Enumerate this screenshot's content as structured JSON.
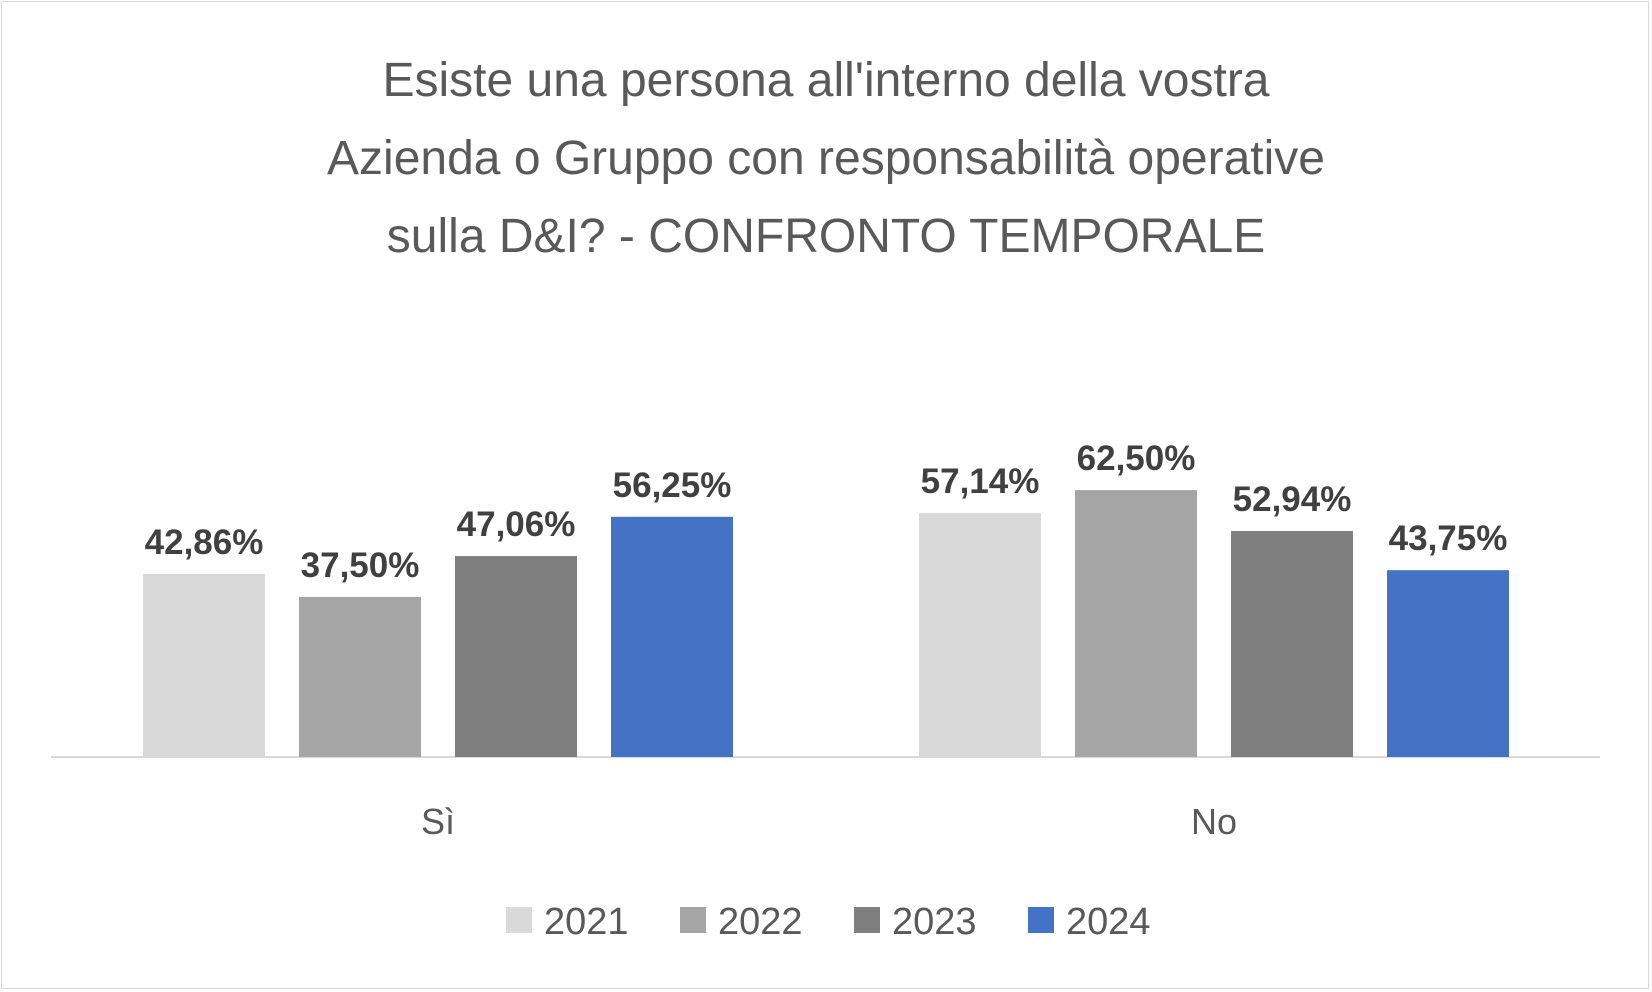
{
  "chart_data": {
    "type": "bar",
    "title": "Esiste una persona all'interno della vostra Azienda o Gruppo con responsabilità operative sulla D&I? - CONFRONTO TEMPORALE",
    "title_lines": [
      "Esiste una persona all'interno della vostra",
      "Azienda o Gruppo con responsabilità operative",
      "sulla D&I? - CONFRONTO TEMPORALE"
    ],
    "categories": [
      "Sì",
      "No"
    ],
    "series": [
      {
        "name": "2021",
        "color": "#d9d9d9",
        "values": [
          42.86,
          57.14
        ],
        "labels": [
          "42,86%",
          "57,14%"
        ]
      },
      {
        "name": "2022",
        "color": "#a5a5a5",
        "values": [
          37.5,
          62.5
        ],
        "labels": [
          "37,50%",
          "62,50%"
        ]
      },
      {
        "name": "2023",
        "color": "#7f7f7f",
        "values": [
          47.06,
          52.94
        ],
        "labels": [
          "47,06%",
          "52,94%"
        ]
      },
      {
        "name": "2024",
        "color": "#4472c4",
        "values": [
          56.25,
          43.75
        ],
        "labels": [
          "56,25%",
          "43,75%"
        ]
      }
    ],
    "xlabel": "",
    "ylabel": "",
    "ylim": [
      0,
      70
    ],
    "grid": false,
    "legend": "bottom"
  }
}
